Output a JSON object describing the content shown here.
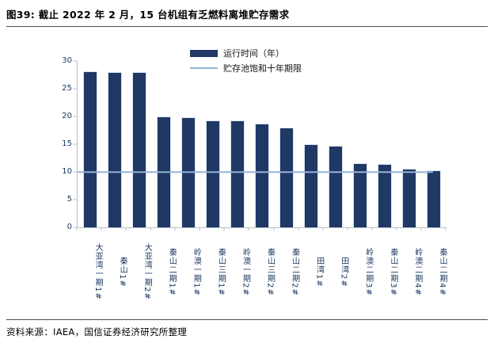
{
  "header": {
    "title": "图39: 截止 2022 年 2 月，15 台机组有乏燃料离堆贮存需求"
  },
  "footer": {
    "source": "资料来源：IAEA，国信证券经济研究所整理"
  },
  "chart_data": {
    "type": "bar",
    "title": "图39: 截止 2022 年 2 月，15 台机组有乏燃料离堆贮存需求",
    "categories": [
      "大亚湾一期1#",
      "秦山1#",
      "大亚湾一期2#",
      "秦山二期1#",
      "岭澳一期1#",
      "秦山三期1#",
      "岭澳一期2#",
      "秦山三期2#",
      "秦山二期2#",
      "田湾1#",
      "田湾2#",
      "岭澳二期3#",
      "秦山二期3#",
      "岭澳二期4#",
      "秦山二期4#"
    ],
    "series": [
      {
        "name": "运行时间（年）",
        "type": "bar",
        "color": "#1F3864",
        "values": [
          28.0,
          27.9,
          27.8,
          19.8,
          19.7,
          19.2,
          19.1,
          18.6,
          17.8,
          14.8,
          14.6,
          11.4,
          11.3,
          10.5,
          10.1
        ]
      },
      {
        "name": "贮存池饱和十年期限",
        "type": "line",
        "color": "#95B3D7",
        "value": 10
      }
    ],
    "xlabel": "",
    "ylabel": "",
    "ylim": [
      0,
      30
    ],
    "yticks": [
      0,
      5,
      10,
      15,
      20,
      25,
      30
    ],
    "legend_position": "top-center",
    "grid": false
  }
}
